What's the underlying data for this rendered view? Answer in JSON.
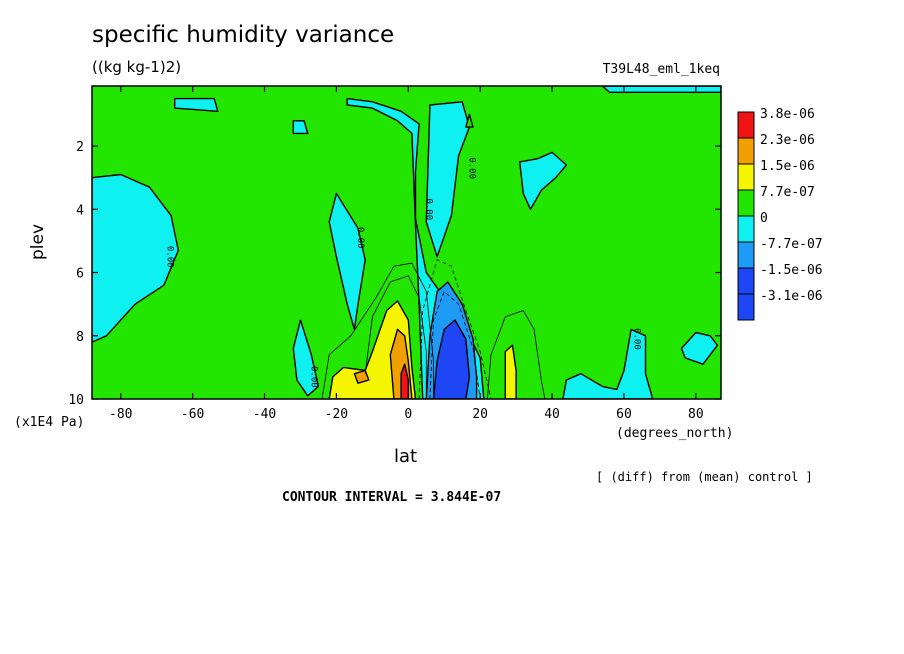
{
  "chart_data": {
    "type": "filled-contour",
    "title": "specific humidity variance",
    "units": "((kg kg-1)2)",
    "run_label": "T39L48_eml_1keq",
    "xlabel": "lat",
    "x_units": "(degrees_north)",
    "ylabel": "plev",
    "y_units": "(x1E4 Pa)",
    "x_ticks": [
      "-80",
      "-60",
      "-40",
      "-20",
      "0",
      "20",
      "40",
      "60",
      "80"
    ],
    "x_tick_values": [
      -80,
      -60,
      -40,
      -20,
      0,
      20,
      40,
      60,
      80
    ],
    "y_ticks": [
      "2",
      "4",
      "6",
      "8",
      "10"
    ],
    "y_tick_values": [
      2,
      4,
      6,
      8,
      10
    ],
    "xlim": [
      -88,
      87
    ],
    "ylim": [
      10,
      0.1
    ],
    "y_inverted": true,
    "contour_interval_label": "CONTOUR INTERVAL = 3.844E-07",
    "diff_note": "[ (diff) from (mean) control ]",
    "contour_labels": [
      {
        "text": "0.00",
        "lat": -67,
        "plev": 5.5
      },
      {
        "text": "0.00",
        "lat": -14,
        "plev": 4.9
      },
      {
        "text": "0.00",
        "lat": 5,
        "plev": 4.0
      },
      {
        "text": "0.00",
        "lat": 17,
        "plev": 2.7
      },
      {
        "text": "0.00",
        "lat": -27,
        "plev": 9.3
      },
      {
        "text": "0.00",
        "lat": 63,
        "plev": 8.1
      }
    ],
    "legend": [
      {
        "label": "3.8e-06",
        "color": "#f01414"
      },
      {
        "label": "2.3e-06",
        "color": "#f0a000"
      },
      {
        "label": "1.5e-06",
        "color": "#f5f500"
      },
      {
        "label": "7.7e-07",
        "color": "#22e600"
      },
      {
        "label": "0",
        "color": "#0ff0f0"
      },
      {
        "label": "-7.7e-07",
        "color": "#1e9bf5"
      },
      {
        "label": "-1.5e-06",
        "color": "#1e46f5"
      },
      {
        "label": "-3.1e-06",
        "color": "#1e46f5"
      }
    ],
    "regions": [
      {
        "level": "negative-weak",
        "color": "#0ff0f0",
        "pts": [
          [
            -88,
            3
          ],
          [
            -80,
            2.9
          ],
          [
            -72,
            3.3
          ],
          [
            -66,
            4.2
          ],
          [
            -64,
            5.3
          ],
          [
            -68,
            6.4
          ],
          [
            -76,
            7
          ],
          [
            -84,
            8
          ],
          [
            -88,
            8.2
          ]
        ]
      },
      {
        "level": "negative-weak",
        "color": "#0ff0f0",
        "pts": [
          [
            -30,
            7.5
          ],
          [
            -27,
            8.6
          ],
          [
            -25,
            9.6
          ],
          [
            -28,
            9.9
          ],
          [
            -31,
            9.4
          ],
          [
            -32,
            8.4
          ]
        ]
      },
      {
        "level": "negative-weak",
        "color": "#0ff0f0",
        "pts": [
          [
            -20,
            3.5
          ],
          [
            -14,
            4.6
          ],
          [
            -12,
            5.6
          ],
          [
            -14,
            7
          ],
          [
            -15,
            7.8
          ],
          [
            -17,
            7
          ],
          [
            -20,
            5.5
          ],
          [
            -22,
            4.4
          ]
        ]
      },
      {
        "level": "negative-weak",
        "color": "#0ff0f0",
        "pts": [
          [
            -17,
            0.5
          ],
          [
            -10,
            0.6
          ],
          [
            -2,
            0.9
          ],
          [
            3,
            1.3
          ],
          [
            2,
            2.8
          ],
          [
            2,
            4.3
          ],
          [
            5,
            6
          ],
          [
            10,
            6.8
          ],
          [
            13,
            7.5
          ],
          [
            17,
            8
          ],
          [
            20,
            8.7
          ],
          [
            21,
            10
          ],
          [
            4,
            10
          ],
          [
            3,
            7
          ],
          [
            2,
            4.5
          ],
          [
            1,
            1.6
          ],
          [
            -3,
            1.2
          ],
          [
            -10,
            0.8
          ],
          [
            -17,
            0.7
          ]
        ]
      },
      {
        "level": "negative-weak",
        "color": "#0ff0f0",
        "pts": [
          [
            6,
            0.7
          ],
          [
            15,
            0.6
          ],
          [
            17,
            1.4
          ],
          [
            14,
            2.3
          ],
          [
            12,
            4.2
          ],
          [
            8,
            5.5
          ],
          [
            5,
            4.4
          ]
        ]
      },
      {
        "level": "negative-weak",
        "color": "#0ff0f0",
        "pts": [
          [
            31,
            2.5
          ],
          [
            36,
            2.4
          ],
          [
            40,
            2.2
          ],
          [
            44,
            2.6
          ],
          [
            41,
            3
          ],
          [
            37,
            3.4
          ],
          [
            34,
            4
          ],
          [
            32,
            3.5
          ]
        ]
      },
      {
        "level": "negative-weak",
        "color": "#0ff0f0",
        "pts": [
          [
            43,
            10
          ],
          [
            44,
            9.4
          ],
          [
            48,
            9.2
          ],
          [
            54,
            9.6
          ],
          [
            58,
            9.7
          ],
          [
            60,
            9.1
          ],
          [
            62,
            7.8
          ],
          [
            66,
            8
          ],
          [
            66,
            9.2
          ],
          [
            68,
            10
          ]
        ]
      },
      {
        "level": "negative-weak",
        "color": "#0ff0f0",
        "pts": [
          [
            76,
            8.4
          ],
          [
            80,
            7.9
          ],
          [
            84,
            8
          ],
          [
            86,
            8.3
          ],
          [
            82,
            8.9
          ],
          [
            77,
            8.7
          ]
        ]
      },
      {
        "level": "negative-weak",
        "color": "#0ff0f0",
        "pts": [
          [
            54,
            0.1
          ],
          [
            87,
            0.1
          ],
          [
            87,
            0.3
          ],
          [
            56,
            0.3
          ]
        ]
      },
      {
        "level": "negative-weak",
        "color": "#0ff0f0",
        "pts": [
          [
            -32,
            1.2
          ],
          [
            -29,
            1.2
          ],
          [
            -28,
            1.6
          ],
          [
            -32,
            1.6
          ]
        ]
      },
      {
        "level": "negative-weak",
        "color": "#0ff0f0",
        "pts": [
          [
            -65,
            0.5
          ],
          [
            -54,
            0.5
          ],
          [
            -53,
            0.9
          ],
          [
            -65,
            0.8
          ]
        ]
      },
      {
        "level": "negative-mid",
        "color": "#1e9bf5",
        "pts": [
          [
            5,
            10
          ],
          [
            6,
            8
          ],
          [
            8,
            6.6
          ],
          [
            11,
            6.3
          ],
          [
            15,
            7
          ],
          [
            18,
            8.1
          ],
          [
            19,
            9.3
          ],
          [
            19,
            10
          ]
        ]
      },
      {
        "level": "negative-strong",
        "color": "#1e46f5",
        "pts": [
          [
            7,
            10
          ],
          [
            8,
            8.8
          ],
          [
            10,
            7.8
          ],
          [
            13,
            7.5
          ],
          [
            16,
            8.1
          ],
          [
            17,
            9.3
          ],
          [
            16,
            10
          ]
        ]
      },
      {
        "level": "positive-weak",
        "color": "#f5f500",
        "pts": [
          [
            -22,
            10
          ],
          [
            -21,
            9.3
          ],
          [
            -18,
            9
          ],
          [
            -12,
            9.1
          ],
          [
            -10,
            8.5
          ],
          [
            -6,
            7.2
          ],
          [
            -3,
            6.9
          ],
          [
            0,
            7.5
          ],
          [
            1,
            9
          ],
          [
            2,
            10
          ]
        ]
      },
      {
        "level": "positive-weak",
        "color": "#f5f500",
        "pts": [
          [
            27,
            8.5
          ],
          [
            29,
            8.3
          ],
          [
            30,
            9.1
          ],
          [
            30,
            10
          ],
          [
            27,
            10
          ]
        ]
      },
      {
        "level": "positive-mid",
        "color": "#f0a000",
        "pts": [
          [
            -4,
            10
          ],
          [
            -5,
            8.6
          ],
          [
            -3,
            7.8
          ],
          [
            -1,
            8
          ],
          [
            0,
            8.8
          ],
          [
            1,
            10
          ]
        ]
      },
      {
        "level": "positive-mid",
        "color": "#f0a000",
        "pts": [
          [
            -15,
            9.2
          ],
          [
            -12,
            9.1
          ],
          [
            -11,
            9.4
          ],
          [
            -14,
            9.5
          ]
        ]
      },
      {
        "level": "positive-strong",
        "color": "#f01414",
        "pts": [
          [
            -2,
            10
          ],
          [
            -2,
            9.2
          ],
          [
            -1,
            8.9
          ],
          [
            0,
            9.4
          ],
          [
            0,
            10
          ]
        ]
      },
      {
        "level": "positive-weak",
        "color": "#22e600",
        "pts": [
          [
            16,
            1.4
          ],
          [
            17,
            1.0
          ],
          [
            18,
            1.4
          ]
        ]
      }
    ]
  }
}
